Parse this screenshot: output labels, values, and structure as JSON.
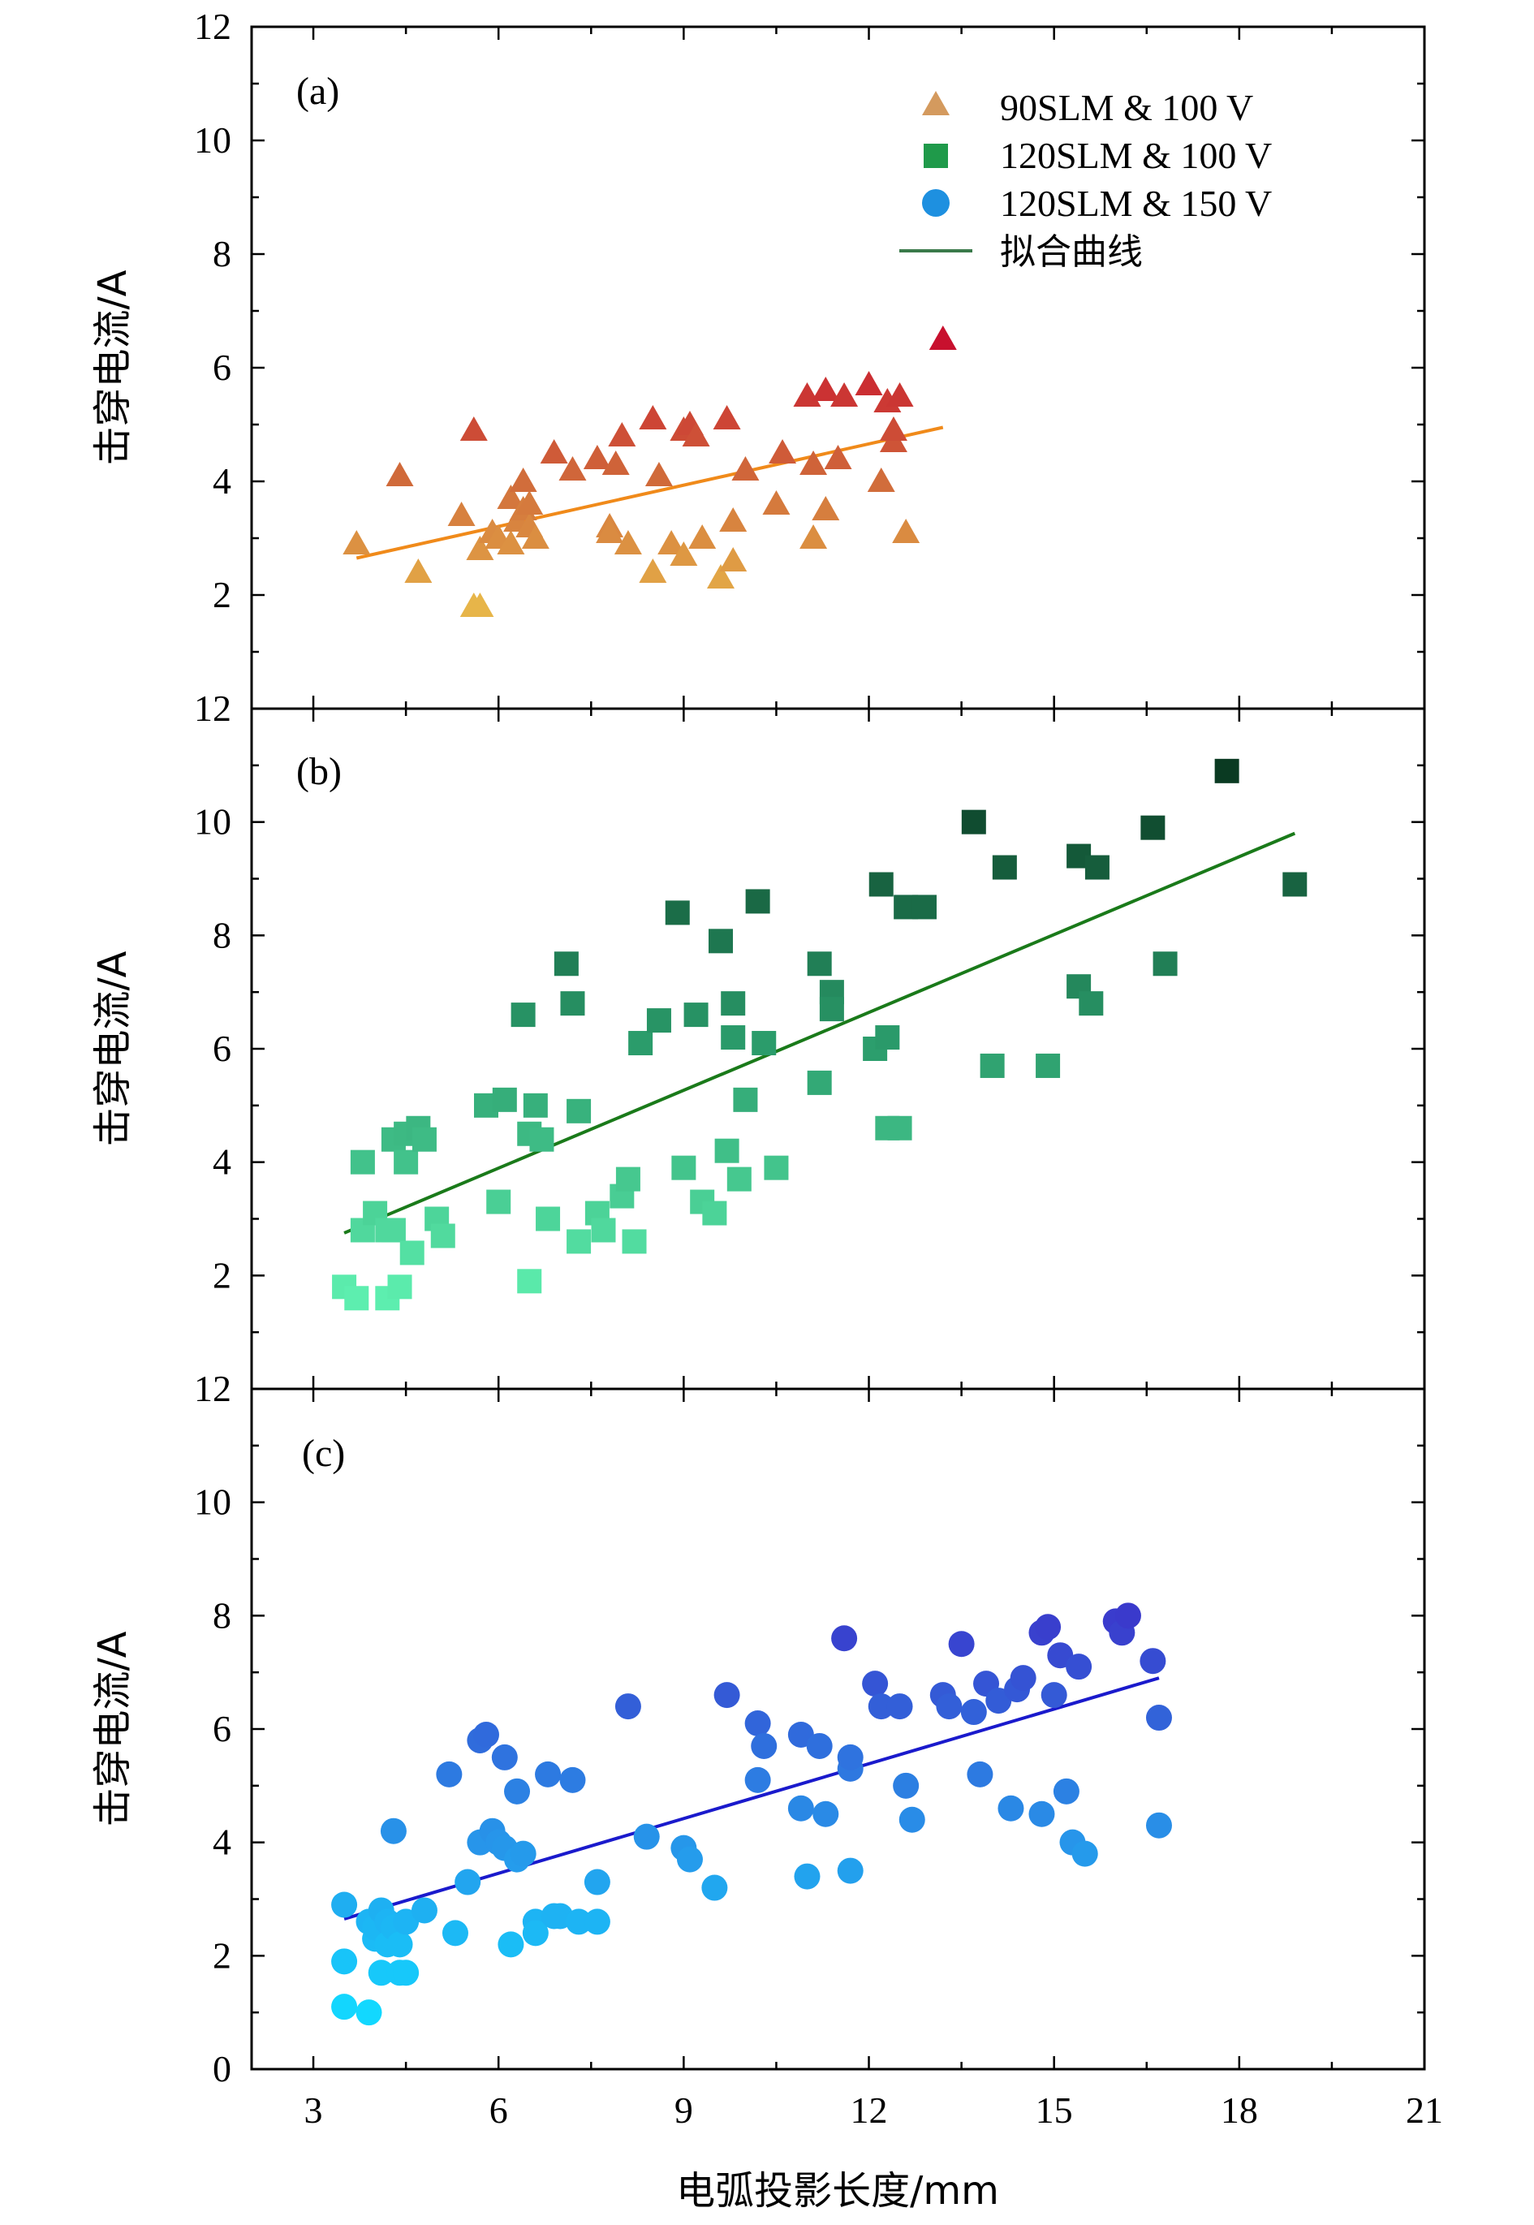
{
  "colors": {
    "fit_a": "#f08a1a",
    "fit_b": "#1a7a1a",
    "fit_c": "#1a1acc",
    "legend_triangle": "#d49a5e",
    "legend_square": "#1f9a4a",
    "legend_circle": "#1e90e0",
    "legend_line": "#3a7a4a"
  },
  "x_axis": {
    "label": "电弧投影长度/mm",
    "ticks": [
      "3",
      "6",
      "9",
      "12",
      "15",
      "18",
      "21"
    ]
  },
  "legend": {
    "items": [
      {
        "label": "90SLM & 100 V",
        "icon": "triangle-marker"
      },
      {
        "label": "120SLM & 100 V",
        "icon": "square-marker"
      },
      {
        "label": "120SLM & 150 V",
        "icon": "circle-marker"
      },
      {
        "label": "拟合曲线",
        "icon": "line-marker"
      }
    ]
  },
  "chart_data": [
    {
      "type": "scatter",
      "panel_label": "(a)",
      "ylabel": "击穿电流/A",
      "yticks": [
        "2",
        "4",
        "6",
        "8",
        "10",
        "12"
      ],
      "xlim": [
        2,
        21
      ],
      "ylim": [
        0,
        12
      ],
      "marker": "triangle",
      "series": [
        {
          "name": "90SLM & 100 V",
          "x": [
            3.7,
            4.4,
            4.7,
            5.4,
            5.6,
            5.7,
            5.6,
            5.7,
            5.9,
            6.0,
            6.2,
            6.2,
            6.3,
            6.4,
            6.5,
            6.5,
            6.6,
            6.4,
            6.9,
            7.2,
            7.6,
            7.8,
            7.8,
            7.9,
            8.0,
            8.1,
            8.5,
            8.5,
            8.6,
            8.8,
            9.0,
            9.0,
            9.1,
            9.2,
            9.3,
            9.6,
            9.7,
            9.8,
            9.8,
            10.0,
            10.5,
            10.6,
            11.0,
            11.1,
            11.1,
            11.3,
            11.3,
            11.5,
            11.6,
            12.0,
            12.2,
            12.3,
            12.4,
            12.4,
            12.5,
            12.6,
            13.2
          ],
          "y": [
            2.9,
            4.1,
            2.4,
            3.4,
            4.9,
            2.8,
            1.8,
            1.8,
            3.1,
            3.0,
            3.7,
            2.9,
            3.3,
            3.5,
            3.2,
            3.6,
            3.0,
            4.0,
            4.5,
            4.2,
            4.4,
            3.2,
            3.1,
            4.3,
            4.8,
            2.9,
            5.1,
            2.4,
            4.1,
            2.9,
            4.9,
            2.7,
            5.0,
            4.8,
            3.0,
            2.3,
            5.1,
            2.6,
            3.3,
            4.2,
            3.6,
            4.5,
            5.5,
            3.0,
            4.3,
            5.6,
            3.5,
            4.4,
            5.5,
            5.7,
            4.0,
            5.4,
            4.7,
            4.9,
            5.5,
            3.1,
            6.5
          ]
        }
      ],
      "fit": {
        "x": [
          3.7,
          13.2
        ],
        "y": [
          2.65,
          4.95
        ]
      }
    },
    {
      "type": "scatter",
      "panel_label": "(b)",
      "ylabel": "击穿电流/A",
      "yticks": [
        "2",
        "4",
        "6",
        "8",
        "10",
        "12"
      ],
      "xlim": [
        2,
        21
      ],
      "ylim": [
        0,
        12
      ],
      "marker": "square",
      "series": [
        {
          "name": "120SLM & 100 V",
          "x": [
            3.5,
            3.7,
            3.8,
            3.8,
            4.0,
            4.2,
            4.2,
            4.3,
            4.3,
            4.4,
            4.5,
            4.5,
            4.6,
            4.7,
            4.8,
            5.0,
            5.1,
            5.8,
            6.0,
            6.1,
            6.4,
            6.5,
            6.5,
            6.6,
            6.7,
            6.8,
            7.1,
            7.2,
            7.3,
            7.3,
            7.6,
            7.7,
            8.0,
            8.1,
            8.2,
            8.3,
            8.6,
            8.9,
            9.0,
            9.2,
            9.3,
            9.5,
            9.6,
            9.7,
            9.8,
            9.8,
            9.9,
            10.0,
            10.2,
            10.3,
            10.5,
            11.2,
            11.2,
            11.4,
            11.4,
            12.1,
            12.2,
            12.3,
            12.3,
            12.5,
            12.6,
            12.9,
            13.7,
            14.0,
            14.2,
            14.9,
            15.4,
            15.4,
            15.6,
            15.7,
            16.6,
            16.8,
            17.8,
            18.9
          ],
          "y": [
            1.8,
            1.6,
            4.0,
            2.8,
            3.1,
            1.6,
            2.8,
            4.4,
            2.8,
            1.8,
            4.0,
            4.5,
            2.4,
            4.6,
            4.4,
            3.0,
            2.7,
            5.0,
            3.3,
            5.1,
            6.6,
            4.5,
            1.9,
            5.0,
            4.4,
            3.0,
            7.5,
            6.8,
            2.6,
            4.9,
            3.1,
            2.8,
            3.4,
            3.7,
            2.6,
            6.1,
            6.5,
            8.4,
            3.9,
            6.6,
            3.3,
            3.1,
            7.9,
            4.2,
            6.8,
            6.2,
            3.7,
            5.1,
            8.6,
            6.1,
            3.9,
            7.5,
            5.4,
            7.0,
            6.7,
            6.0,
            8.9,
            4.6,
            6.2,
            4.6,
            8.5,
            8.5,
            10.0,
            5.7,
            9.2,
            5.7,
            9.4,
            7.1,
            6.8,
            9.2,
            9.9,
            7.5,
            10.9,
            8.9
          ]
        }
      ],
      "fit": {
        "x": [
          3.5,
          18.9
        ],
        "y": [
          2.75,
          9.8
        ]
      }
    },
    {
      "type": "scatter",
      "panel_label": "(c)",
      "ylabel": "击穿电流/A",
      "yticks": [
        "0",
        "2",
        "4",
        "6",
        "8",
        "10",
        "12"
      ],
      "xlim": [
        2,
        21
      ],
      "ylim": [
        0,
        12
      ],
      "marker": "circle",
      "series": [
        {
          "name": "120SLM & 150 V",
          "x": [
            3.5,
            3.5,
            3.5,
            3.9,
            3.9,
            4.0,
            4.0,
            4.1,
            4.1,
            4.2,
            4.2,
            4.3,
            4.3,
            4.4,
            4.4,
            4.5,
            4.5,
            4.8,
            5.2,
            5.3,
            5.5,
            5.7,
            5.7,
            5.8,
            5.9,
            6.0,
            6.1,
            6.1,
            6.2,
            6.3,
            6.3,
            6.4,
            6.6,
            6.6,
            6.8,
            6.9,
            7.0,
            7.2,
            7.3,
            7.6,
            7.6,
            8.1,
            8.4,
            9.0,
            9.1,
            9.5,
            9.7,
            10.2,
            10.2,
            10.3,
            10.9,
            10.9,
            11.0,
            11.2,
            11.3,
            11.6,
            11.7,
            11.7,
            11.7,
            12.1,
            12.2,
            12.5,
            12.6,
            12.7,
            13.2,
            13.3,
            13.5,
            13.7,
            13.8,
            13.9,
            14.1,
            14.3,
            14.4,
            14.5,
            14.8,
            14.8,
            14.9,
            15.0,
            15.1,
            15.2,
            15.3,
            15.4,
            15.5,
            16.0,
            16.1,
            16.2,
            16.6,
            16.7,
            16.7
          ],
          "y": [
            2.9,
            1.9,
            1.1,
            2.6,
            1.0,
            2.3,
            2.5,
            2.8,
            1.7,
            2.6,
            2.2,
            2.5,
            4.2,
            1.7,
            2.2,
            2.6,
            1.7,
            2.8,
            5.2,
            2.4,
            3.3,
            4.0,
            5.8,
            5.9,
            4.2,
            4.0,
            3.9,
            5.5,
            2.2,
            3.7,
            4.9,
            3.8,
            2.6,
            2.4,
            5.2,
            2.7,
            2.7,
            5.1,
            2.6,
            3.3,
            2.6,
            6.4,
            4.1,
            3.9,
            3.7,
            3.2,
            6.6,
            5.1,
            6.1,
            5.7,
            4.6,
            5.9,
            3.4,
            5.7,
            4.5,
            7.6,
            5.3,
            5.5,
            3.5,
            6.8,
            6.4,
            6.4,
            5.0,
            4.4,
            6.6,
            6.4,
            7.5,
            6.3,
            5.2,
            6.8,
            6.5,
            4.6,
            6.7,
            6.9,
            7.7,
            4.5,
            7.8,
            6.6,
            7.3,
            4.9,
            4.0,
            7.1,
            3.8,
            7.9,
            7.7,
            8.0,
            7.2,
            6.2,
            4.3
          ],
          "y_fix": []
        }
      ],
      "fit": {
        "x": [
          3.5,
          16.7
        ],
        "y": [
          2.65,
          6.9
        ]
      }
    }
  ]
}
